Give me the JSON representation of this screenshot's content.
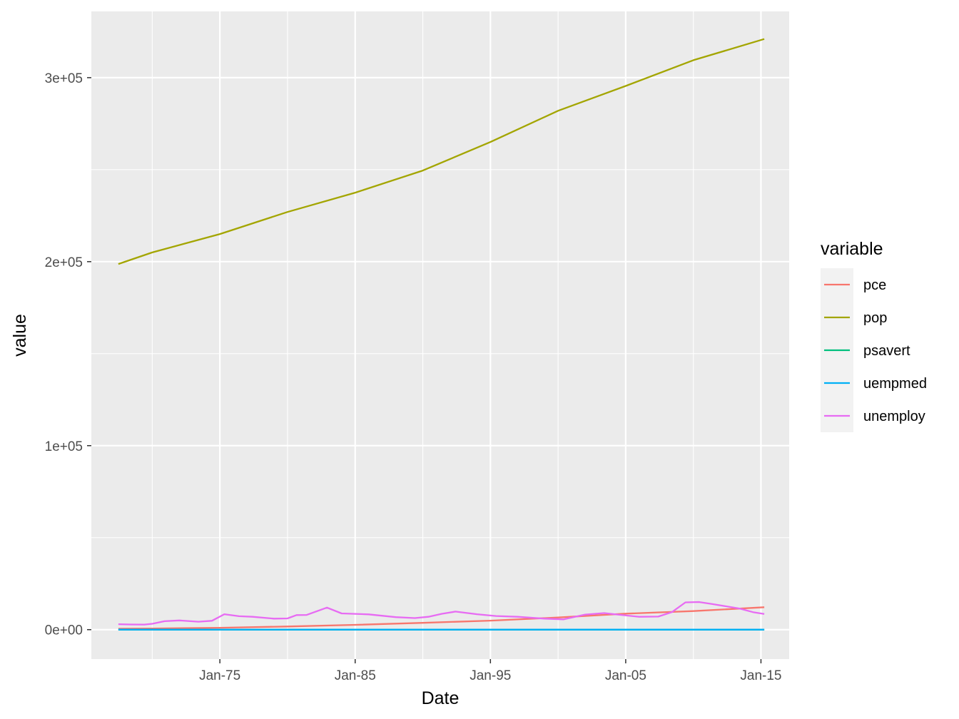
{
  "chart_data": {
    "type": "line",
    "xlabel": "Date",
    "ylabel": "value",
    "xlim": [
      "1965-07-01",
      "2017-02-01"
    ],
    "ylim": [
      -16000,
      336000
    ],
    "x_ticks": [
      {
        "date": "1975-01-01",
        "label": "Jan-75"
      },
      {
        "date": "1985-01-01",
        "label": "Jan-85"
      },
      {
        "date": "1995-01-01",
        "label": "Jan-95"
      },
      {
        "date": "2005-01-01",
        "label": "Jan-05"
      },
      {
        "date": "2015-01-01",
        "label": "Jan-15"
      }
    ],
    "y_ticks": [
      {
        "value": 0,
        "label": "0e+00"
      },
      {
        "value": 100000,
        "label": "1e+05"
      },
      {
        "value": 200000,
        "label": "2e+05"
      },
      {
        "value": 300000,
        "label": "3e+05"
      }
    ],
    "grid": true,
    "legend": {
      "title": "variable",
      "position": "right"
    },
    "series": [
      {
        "name": "pce",
        "color": "#F8766D",
        "points": [
          [
            "1967-07-01",
            507
          ],
          [
            "1970-01-01",
            620
          ],
          [
            "1975-01-01",
            1000
          ],
          [
            "1980-01-01",
            1700
          ],
          [
            "1985-01-01",
            2600
          ],
          [
            "1990-01-01",
            3700
          ],
          [
            "1995-01-01",
            4900
          ],
          [
            "2000-01-01",
            6600
          ],
          [
            "2005-01-01",
            8700
          ],
          [
            "2010-01-01",
            10100
          ],
          [
            "2015-04-01",
            12200
          ]
        ]
      },
      {
        "name": "pop",
        "color": "#A3A500",
        "points": [
          [
            "1967-07-01",
            198712
          ],
          [
            "1970-01-01",
            205000
          ],
          [
            "1975-01-01",
            215000
          ],
          [
            "1980-01-01",
            227000
          ],
          [
            "1985-01-01",
            237500
          ],
          [
            "1990-01-01",
            249500
          ],
          [
            "1995-01-01",
            265000
          ],
          [
            "2000-01-01",
            282000
          ],
          [
            "2005-01-01",
            295500
          ],
          [
            "2010-01-01",
            309500
          ],
          [
            "2015-04-01",
            321000
          ]
        ]
      },
      {
        "name": "psavert",
        "color": "#00BF7D",
        "points": [
          [
            "1967-07-01",
            12.6
          ],
          [
            "1975-01-01",
            13.0
          ],
          [
            "1985-01-01",
            10.0
          ],
          [
            "1995-01-01",
            6.4
          ],
          [
            "2005-01-01",
            3.0
          ],
          [
            "2015-04-01",
            7.6
          ]
        ]
      },
      {
        "name": "uempmed",
        "color": "#00B0F6",
        "points": [
          [
            "1967-07-01",
            4.5
          ],
          [
            "1975-01-01",
            6.3
          ],
          [
            "1985-01-01",
            7.0
          ],
          [
            "1995-01-01",
            8.0
          ],
          [
            "2005-01-01",
            8.9
          ],
          [
            "2010-06-01",
            25.0
          ],
          [
            "2015-04-01",
            12.0
          ]
        ]
      },
      {
        "name": "unemploy",
        "color": "#E76BF3",
        "points": [
          [
            "1967-07-01",
            2944
          ],
          [
            "1968-06-01",
            2800
          ],
          [
            "1969-06-01",
            2750
          ],
          [
            "1970-01-01",
            3200
          ],
          [
            "1970-12-01",
            4600
          ],
          [
            "1972-01-01",
            5000
          ],
          [
            "1973-06-01",
            4300
          ],
          [
            "1974-06-01",
            4800
          ],
          [
            "1975-05-01",
            8400
          ],
          [
            "1976-06-01",
            7300
          ],
          [
            "1977-06-01",
            7000
          ],
          [
            "1979-01-01",
            6000
          ],
          [
            "1980-01-01",
            6100
          ],
          [
            "1980-09-01",
            7900
          ],
          [
            "1981-06-01",
            8000
          ],
          [
            "1982-12-01",
            12000
          ],
          [
            "1984-01-01",
            8800
          ],
          [
            "1986-01-01",
            8300
          ],
          [
            "1988-01-01",
            6800
          ],
          [
            "1989-06-01",
            6300
          ],
          [
            "1990-06-01",
            7000
          ],
          [
            "1991-06-01",
            8600
          ],
          [
            "1992-06-01",
            9800
          ],
          [
            "1994-01-01",
            8400
          ],
          [
            "1995-06-01",
            7400
          ],
          [
            "1997-01-01",
            7000
          ],
          [
            "1999-01-01",
            6000
          ],
          [
            "2000-06-01",
            5600
          ],
          [
            "2002-01-01",
            8200
          ],
          [
            "2003-06-01",
            9000
          ],
          [
            "2004-06-01",
            8200
          ],
          [
            "2006-01-01",
            7000
          ],
          [
            "2007-06-01",
            7100
          ],
          [
            "2008-06-01",
            9500
          ],
          [
            "2009-06-01",
            14800
          ],
          [
            "2010-06-01",
            15000
          ],
          [
            "2011-06-01",
            13900
          ],
          [
            "2012-06-01",
            12700
          ],
          [
            "2013-06-01",
            11500
          ],
          [
            "2014-06-01",
            9500
          ],
          [
            "2015-04-01",
            8500
          ]
        ]
      }
    ]
  }
}
